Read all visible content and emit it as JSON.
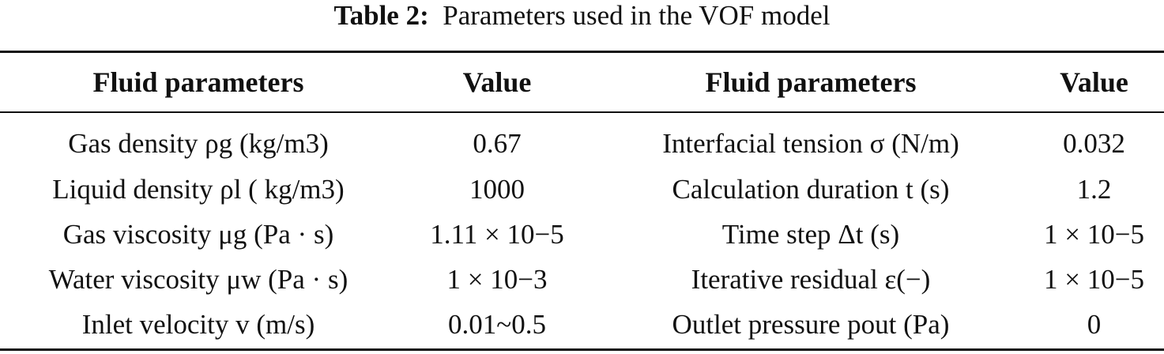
{
  "caption": {
    "label": "Table 2:",
    "text": "Parameters used in the VOF model"
  },
  "headers": [
    "Fluid parameters",
    "Value",
    "Fluid parameters",
    "Value"
  ],
  "rows": [
    [
      "Gas density ρg (kg/m3)",
      "0.67",
      "Interfacial tension σ (N/m)",
      "0.032"
    ],
    [
      "Liquid density ρl ( kg/m3)",
      "1000",
      "Calculation duration t (s)",
      "1.2"
    ],
    [
      "Gas viscosity μg (Pa · s)",
      "1.11 × 10−5",
      "Time step Δt (s)",
      "1 × 10−5"
    ],
    [
      "Water viscosity μw (Pa · s)",
      "1 × 10−3",
      "Iterative residual ε(−)",
      "1 × 10−5"
    ],
    [
      "Inlet velocity v (m/s)",
      "0.01~0.5",
      "Outlet pressure pout (Pa)",
      "0"
    ]
  ]
}
